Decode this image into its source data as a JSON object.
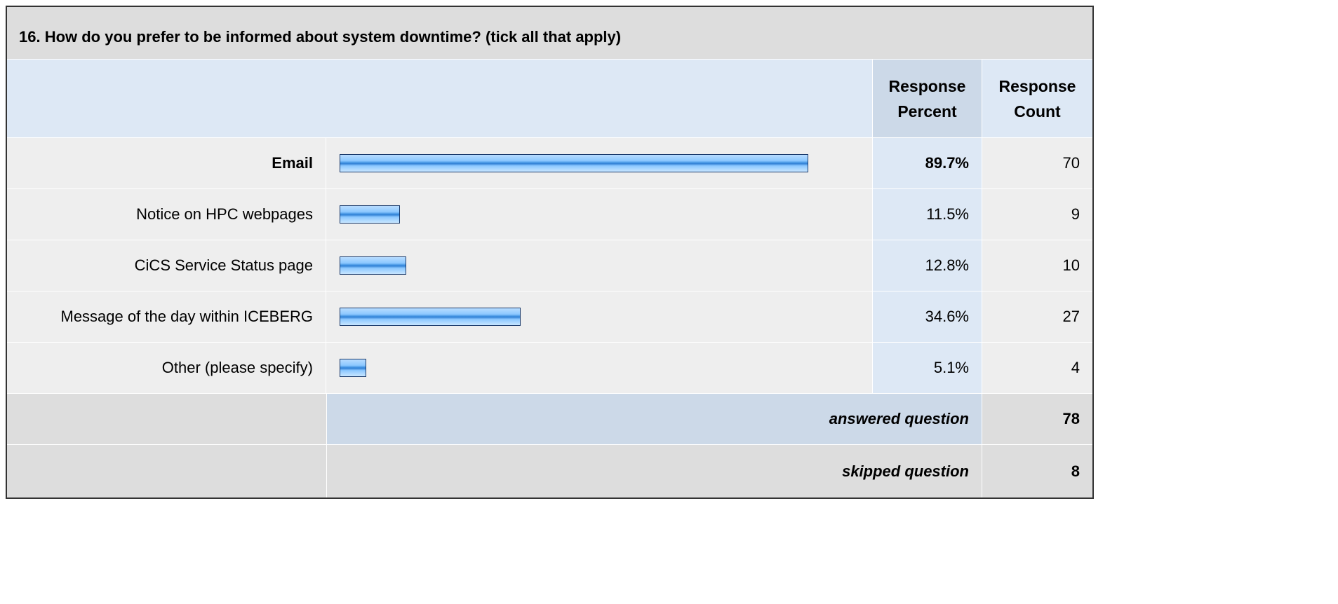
{
  "chart_data": {
    "type": "bar",
    "title": "16. How do you prefer to be informed about system downtime? (tick all that apply)",
    "column_headers": {
      "percent": [
        "Response",
        "Percent"
      ],
      "count": [
        "Response",
        "Count"
      ]
    },
    "categories": [
      "Email",
      "Notice on HPC webpages",
      "CiCS Service Status page",
      "Message of the day within ICEBERG",
      "Other (please specify)"
    ],
    "values": [
      89.7,
      11.5,
      12.8,
      34.6,
      5.1
    ],
    "percent_labels": [
      "89.7%",
      "11.5%",
      "12.8%",
      "34.6%",
      "5.1%"
    ],
    "counts": [
      "70",
      "9",
      "10",
      "27",
      "4"
    ],
    "highlight_index": 0,
    "xlim": [
      0,
      100
    ],
    "summary": {
      "answered_label": "answered question",
      "answered_value": "78",
      "skipped_label": "skipped question",
      "skipped_value": "8"
    }
  }
}
